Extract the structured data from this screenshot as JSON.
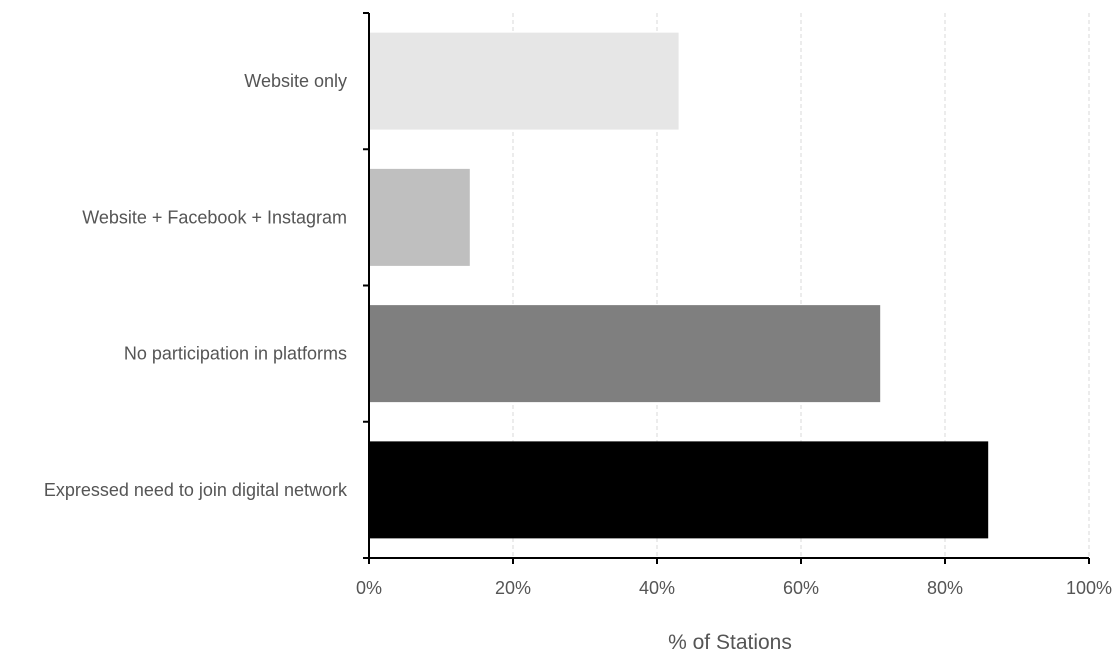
{
  "chart_data": {
    "type": "bar",
    "orientation": "horizontal",
    "categories": [
      "Website only",
      "Website + Facebook + Instagram",
      "No participation in platforms",
      "Expressed need to join digital network"
    ],
    "values": [
      43,
      14,
      71,
      86
    ],
    "bar_colors": [
      "#e6e6e6",
      "#bfbfbf",
      "#7f7f7f",
      "#000000"
    ],
    "title": "",
    "xlabel": "% of Stations",
    "ylabel": "",
    "xlim": [
      0,
      100
    ],
    "xticks": [
      0,
      20,
      40,
      60,
      80,
      100
    ],
    "xtick_labels": [
      "0%",
      "20%",
      "40%",
      "60%",
      "80%",
      "100%"
    ],
    "grid": "vertical dashed",
    "legend": "none"
  }
}
